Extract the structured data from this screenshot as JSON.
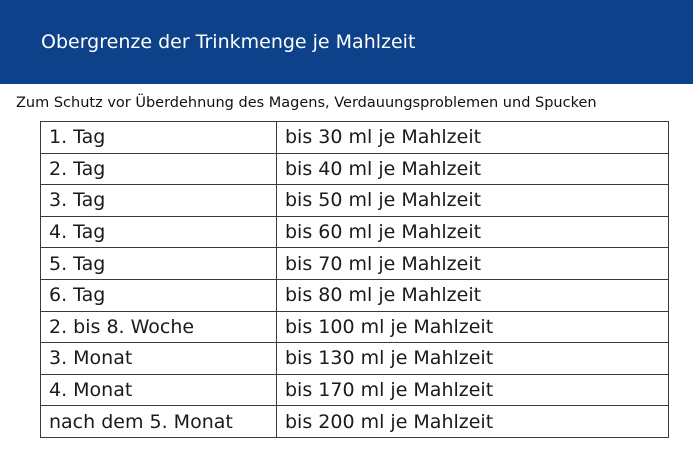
{
  "header": {
    "title": "Obergrenze der Trinkmenge je Mahlzeit",
    "background": "#0d4189"
  },
  "subtitle": "Zum Schutz vor Überdehnung des Magens, Verdauungsproblemen und Spucken",
  "table": {
    "rows": [
      {
        "period": "1. Tag",
        "amount": "bis 30 ml je Mahlzeit"
      },
      {
        "period": "2. Tag",
        "amount": "bis 40 ml je Mahlzeit"
      },
      {
        "period": "3. Tag",
        "amount": "bis 50 ml je Mahlzeit"
      },
      {
        "period": "4. Tag",
        "amount": "bis 60 ml je Mahlzeit"
      },
      {
        "period": "5. Tag",
        "amount": "bis 70 ml je Mahlzeit"
      },
      {
        "period": "6. Tag",
        "amount": "bis 80 ml je Mahlzeit"
      },
      {
        "period": "2. bis 8. Woche",
        "amount": "bis 100 ml je Mahlzeit"
      },
      {
        "period": "3. Monat",
        "amount": "bis 130 ml je Mahlzeit"
      },
      {
        "period": "4. Monat",
        "amount": "bis 170 ml je Mahlzeit"
      },
      {
        "period": "nach dem 5. Monat",
        "amount": "bis 200 ml je Mahlzeit"
      }
    ]
  }
}
